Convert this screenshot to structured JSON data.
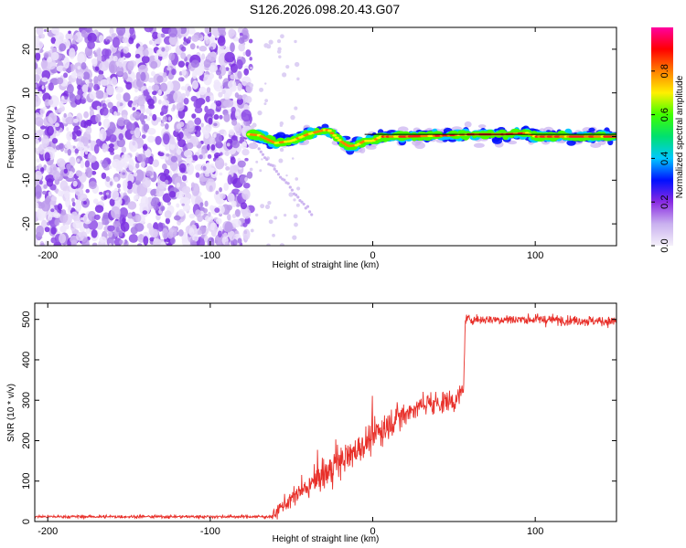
{
  "title": "S126.2026.098.20.43.G07",
  "chart_data": [
    {
      "type": "heatmap",
      "name": "spectrogram",
      "xlabel": "Height of straight line (km)",
      "ylabel": "Frequency (Hz)",
      "xlim": [
        -208,
        150
      ],
      "ylim": [
        -25,
        25
      ],
      "xticks": [
        -200,
        -100,
        0,
        100
      ],
      "xtick_labels": [
        "-200",
        "-100",
        "0",
        "100"
      ],
      "yticks": [
        20,
        10,
        0,
        -10,
        -20
      ],
      "ytick_labels": [
        "20",
        "10",
        "0",
        "-10",
        "-20"
      ],
      "noise_region_x": [
        -208,
        -75
      ],
      "ridge": {
        "x": [
          -76,
          -70,
          -60,
          -50,
          -40,
          -30,
          -27,
          -20,
          -15,
          -10,
          -5,
          0,
          5,
          10,
          20,
          40,
          60,
          80,
          95,
          100,
          120,
          150
        ],
        "y": [
          0.5,
          0.3,
          -1.5,
          -1.0,
          0.5,
          1.5,
          1.5,
          -1.0,
          -2.2,
          -2.0,
          -1.0,
          -1.0,
          0.0,
          0.0,
          0.0,
          0.2,
          0.5,
          0.5,
          0.8,
          0.0,
          0.0,
          0.0
        ]
      },
      "reference_line_y": 0.5
    },
    {
      "type": "line",
      "name": "snr",
      "xlabel": "Height of straight line (km)",
      "ylabel": "SNR (10 * v/v)",
      "xlim": [
        -208,
        150
      ],
      "ylim": [
        0,
        540
      ],
      "xticks": [
        -200,
        -100,
        0,
        100
      ],
      "xtick_labels": [
        "-200",
        "-100",
        "0",
        "100"
      ],
      "yticks": [
        0,
        100,
        200,
        300,
        400,
        500
      ],
      "ytick_labels": [
        "0",
        "100",
        "200",
        "300",
        "400",
        "500"
      ],
      "color": "#e8302a",
      "series": [
        {
          "name": "SNR",
          "x": [
            -208,
            -62,
            -55,
            -45,
            -35,
            -25,
            -15,
            -5,
            5,
            15,
            25,
            35,
            45,
            50,
            54,
            56,
            57,
            60,
            100,
            150
          ],
          "y": [
            12,
            12,
            40,
            70,
            100,
            130,
            160,
            190,
            225,
            255,
            280,
            290,
            295,
            295,
            310,
            340,
            500,
            500,
            500,
            495
          ]
        }
      ]
    }
  ],
  "colorbar": {
    "label": "Normalized spectral amplitude",
    "range": [
      0,
      1
    ],
    "ticks": [
      0.0,
      0.2,
      0.4,
      0.6,
      0.8
    ],
    "tick_labels": [
      "0.0",
      "0.2",
      "0.4",
      "0.6",
      "0.8"
    ],
    "colors": [
      "#f4f0fa",
      "#c9b0ef",
      "#8a2be2",
      "#0010ff",
      "#00c8ff",
      "#00e070",
      "#40ff00",
      "#fff000",
      "#ff8000",
      "#ff0000",
      "#ff00a0"
    ]
  }
}
